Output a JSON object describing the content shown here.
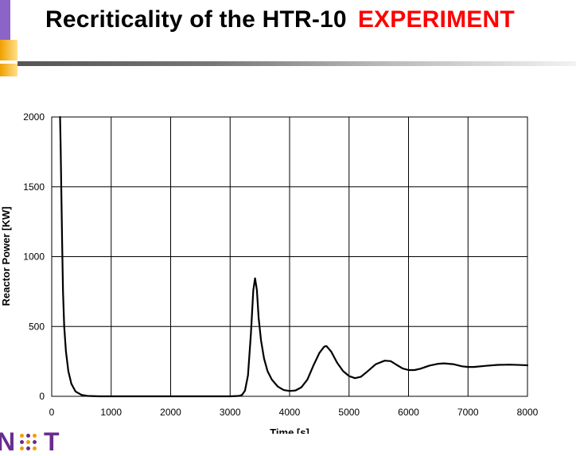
{
  "slide": {
    "title_main": "Recriticality of the HTR-10",
    "title_accent": "EXPERIMENT",
    "colors": {
      "title": "#000000",
      "accent": "#ff0000",
      "logo": "#6a2c8f"
    }
  },
  "logo": {
    "text_left": "N",
    "text_right": "T"
  },
  "chart_data": {
    "type": "line",
    "xlabel": "Time [s]",
    "ylabel": "Reactor Power [KW]",
    "xlim": [
      0,
      8000
    ],
    "ylim": [
      0,
      2000
    ],
    "x_ticks": [
      0,
      1000,
      2000,
      3000,
      4000,
      5000,
      6000,
      7000,
      8000
    ],
    "y_ticks": [
      0,
      500,
      1000,
      1500,
      2000
    ],
    "grid": true,
    "legend": "none",
    "series": [
      {
        "color": "#000000",
        "points": [
          [
            140,
            2000
          ],
          [
            150,
            1800
          ],
          [
            160,
            1500
          ],
          [
            175,
            1100
          ],
          [
            190,
            750
          ],
          [
            210,
            500
          ],
          [
            240,
            320
          ],
          [
            280,
            180
          ],
          [
            330,
            90
          ],
          [
            400,
            35
          ],
          [
            500,
            10
          ],
          [
            600,
            3
          ],
          [
            800,
            0
          ],
          [
            1500,
            0
          ],
          [
            2500,
            0
          ],
          [
            3000,
            0
          ],
          [
            3150,
            3
          ],
          [
            3200,
            10
          ],
          [
            3250,
            40
          ],
          [
            3300,
            150
          ],
          [
            3350,
            450
          ],
          [
            3390,
            760
          ],
          [
            3420,
            845
          ],
          [
            3450,
            760
          ],
          [
            3480,
            560
          ],
          [
            3520,
            400
          ],
          [
            3570,
            270
          ],
          [
            3630,
            180
          ],
          [
            3700,
            120
          ],
          [
            3800,
            70
          ],
          [
            3900,
            45
          ],
          [
            4000,
            38
          ],
          [
            4100,
            42
          ],
          [
            4200,
            65
          ],
          [
            4300,
            120
          ],
          [
            4400,
            220
          ],
          [
            4500,
            310
          ],
          [
            4580,
            355
          ],
          [
            4620,
            360
          ],
          [
            4700,
            320
          ],
          [
            4800,
            240
          ],
          [
            4900,
            180
          ],
          [
            5000,
            145
          ],
          [
            5100,
            130
          ],
          [
            5200,
            140
          ],
          [
            5300,
            175
          ],
          [
            5450,
            230
          ],
          [
            5600,
            255
          ],
          [
            5700,
            252
          ],
          [
            5800,
            225
          ],
          [
            5900,
            200
          ],
          [
            6000,
            188
          ],
          [
            6100,
            188
          ],
          [
            6200,
            198
          ],
          [
            6350,
            220
          ],
          [
            6500,
            233
          ],
          [
            6600,
            236
          ],
          [
            6750,
            230
          ],
          [
            6900,
            215
          ],
          [
            7000,
            210
          ],
          [
            7100,
            210
          ],
          [
            7300,
            218
          ],
          [
            7500,
            225
          ],
          [
            7700,
            227
          ],
          [
            7900,
            224
          ],
          [
            8000,
            222
          ]
        ]
      }
    ]
  }
}
